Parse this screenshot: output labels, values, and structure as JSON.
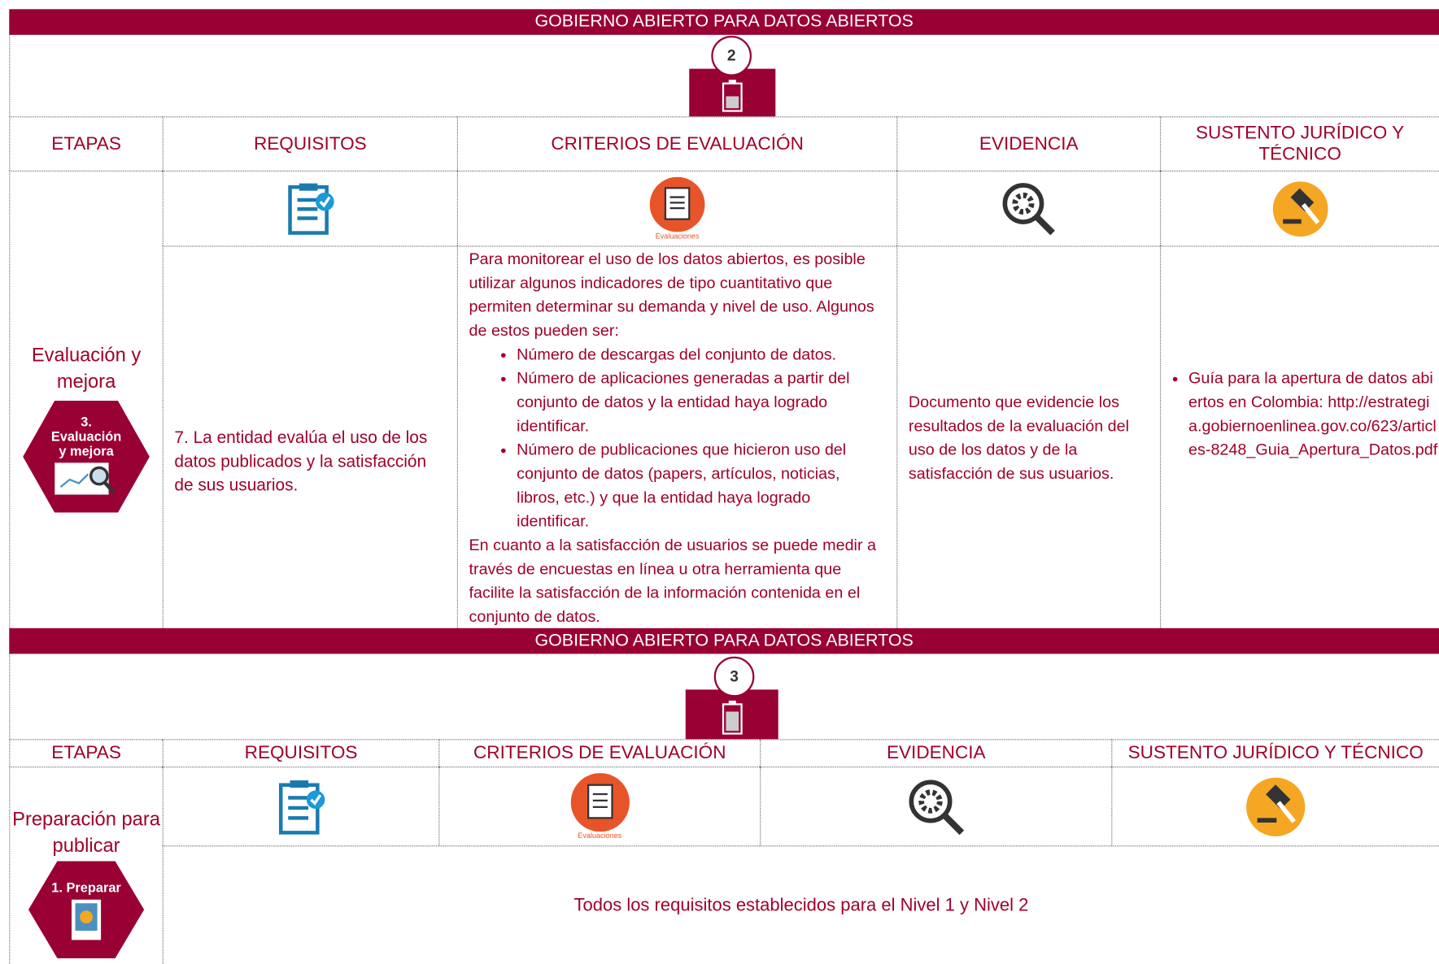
{
  "sections": [
    {
      "header": "GOBIERNO ABIERTO PARA DATOS ABIERTOS",
      "level": "2",
      "columns": [
        "ETAPAS",
        "REQUISITOS",
        "CRITERIOS DE EVALUACIÓN",
        "EVIDENCIA",
        "SUSTENTO JURÍDICO Y TÉCNICO"
      ],
      "stage": "Evaluación y mejora",
      "badge": "3. Evaluación y mejora",
      "icon_caption": "Evaluaciones",
      "requirement": "7. La entidad evalúa el uso de los datos publicados y la satisfacción de sus usuarios.",
      "criteria": {
        "intro": "Para monitorear el uso de los datos abiertos, es posible utilizar algunos indicadores de tipo cuantitativo que permiten determinar su demanda y nivel de uso. Algunos de estos pueden ser:",
        "bullets": [
          "Número de descargas del conjunto de datos.",
          "Número de aplicaciones generadas a partir del conjunto de datos y la entidad haya logrado identificar.",
          "Número de publicaciones que hicieron uso del conjunto de datos (papers, artículos, noticias, libros, etc.) y que la entidad haya logrado identificar."
        ],
        "outro": "En cuanto a la satisfacción de usuarios se puede medir a través de encuestas en línea u otra herramienta que facilite la satisfacción de la información contenida en el conjunto de datos."
      },
      "evidence": "Documento que evidencie los resultados de la evaluación del uso de los datos y de la satisfacción de sus usuarios.",
      "legal": "Guía para la apertura de datos abiertos en Colombia: http://estrategia.gobiernoenlinea.gov.co/623/articles-8248_Guia_Apertura_Datos.pdf"
    },
    {
      "header": "GOBIERNO ABIERTO PARA DATOS ABIERTOS",
      "level": "3",
      "columns": [
        "ETAPAS",
        "REQUISITOS",
        "CRITERIOS DE EVALUACIÓN",
        "EVIDENCIA",
        "SUSTENTO JURÍDICO Y TÉCNICO"
      ],
      "stage": "Preparación para publicar",
      "badge": "1. Preparar",
      "icon_caption": "Evaluaciones",
      "requirements": "Todos los requisitos establecidos para el Nivel 1 y Nivel 2"
    }
  ]
}
